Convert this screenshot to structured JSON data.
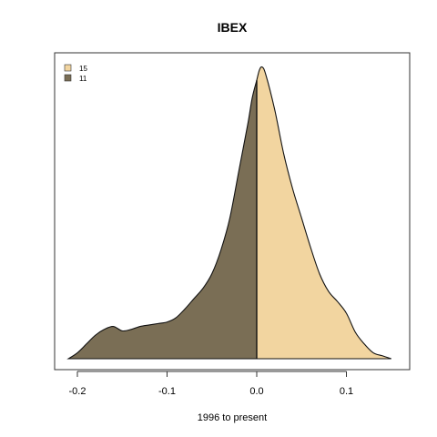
{
  "chart_data": {
    "type": "area",
    "title": "IBEX",
    "xlabel": "1996 to present",
    "ylabel": "",
    "xlim": [
      -0.22,
      0.17
    ],
    "ylim": [
      0,
      1.0
    ],
    "xticks": [
      -0.2,
      -0.1,
      0.0,
      0.1
    ],
    "xtick_labels": [
      "-0.2",
      "-0.1",
      "0.0",
      "0.1"
    ],
    "grid": false,
    "legend_position": "top-left",
    "split_at": 0.0,
    "series": [
      {
        "name": "15",
        "color": "#F2D5A0",
        "region": "x >= 0"
      },
      {
        "name": "11",
        "color": "#7A6E55",
        "region": "x <= 0"
      }
    ],
    "density": {
      "x": [
        -0.21,
        -0.2,
        -0.19,
        -0.18,
        -0.17,
        -0.16,
        -0.15,
        -0.14,
        -0.13,
        -0.12,
        -0.11,
        -0.1,
        -0.09,
        -0.08,
        -0.07,
        -0.06,
        -0.05,
        -0.04,
        -0.03,
        -0.02,
        -0.01,
        -0.005,
        0.0,
        0.003,
        0.006,
        0.01,
        0.02,
        0.03,
        0.04,
        0.05,
        0.06,
        0.07,
        0.08,
        0.09,
        0.1,
        0.11,
        0.12,
        0.13,
        0.14,
        0.15
      ],
      "y": [
        0.0,
        0.02,
        0.05,
        0.08,
        0.1,
        0.11,
        0.095,
        0.1,
        0.11,
        0.115,
        0.12,
        0.125,
        0.14,
        0.17,
        0.205,
        0.24,
        0.29,
        0.37,
        0.48,
        0.64,
        0.8,
        0.89,
        0.95,
        0.985,
        0.995,
        0.97,
        0.85,
        0.7,
        0.58,
        0.48,
        0.38,
        0.29,
        0.23,
        0.195,
        0.155,
        0.09,
        0.05,
        0.02,
        0.01,
        0.0
      ]
    }
  }
}
